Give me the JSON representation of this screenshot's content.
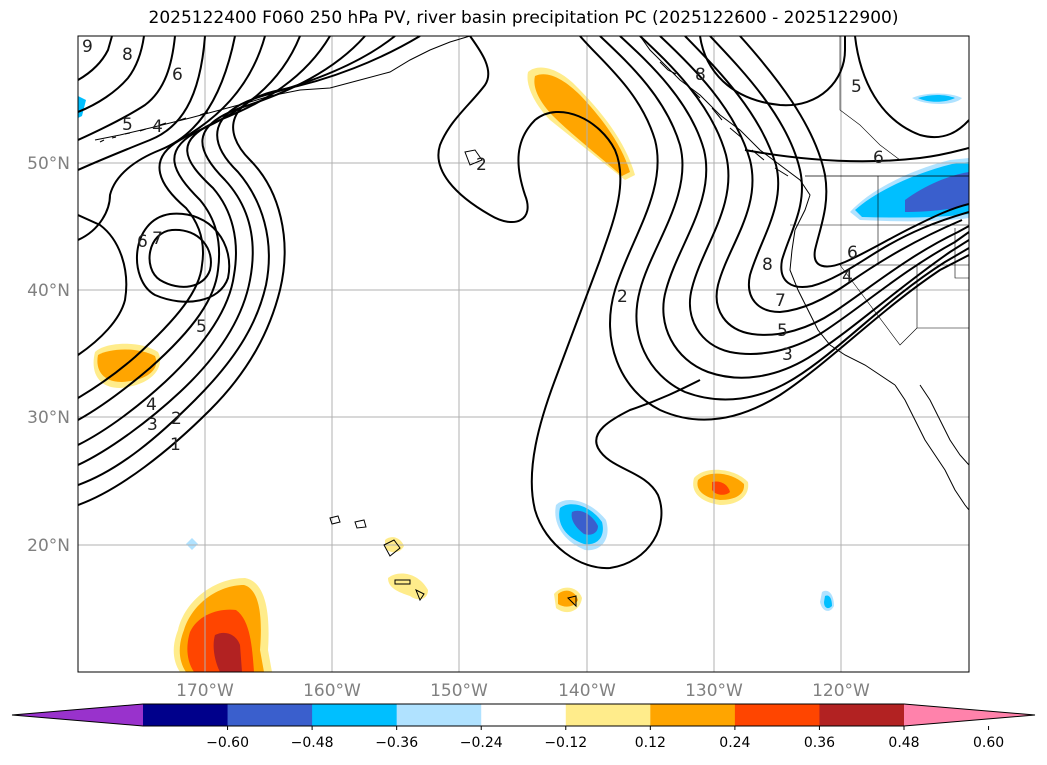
{
  "title": "2025122400 F060 250 hPa PV, river basin precipitation PC (2025122600 - 2025122900)",
  "lat_labels": [
    "50°N",
    "40°N",
    "30°N",
    "20°N"
  ],
  "lon_labels": [
    "170°W",
    "160°W",
    "150°W",
    "140°W",
    "130°W",
    "120°W"
  ],
  "contour_labels": [
    "9",
    "8",
    "6",
    "5",
    "4",
    "6",
    "7",
    "5",
    "4",
    "3",
    "2",
    "1",
    "2",
    "2",
    "8",
    "7",
    "6",
    "5",
    "4",
    "3",
    "8",
    "5",
    "6"
  ],
  "colorbar": {
    "tick_labels": [
      "−0.60",
      "−0.48",
      "−0.36",
      "−0.24",
      "−0.12",
      "0.12",
      "0.24",
      "0.36",
      "0.48",
      "0.60"
    ],
    "colors": [
      "#9932cc",
      "#00008b",
      "#3a5fcd",
      "#00bfff",
      "#b0e2ff",
      "#ffffff",
      "#ffec8b",
      "#ffa500",
      "#ff4500",
      "#b22222",
      "#ff82ab"
    ]
  },
  "colors": {
    "contour": "#000000",
    "coast": "#000000",
    "grid": "#b0b0b0"
  }
}
